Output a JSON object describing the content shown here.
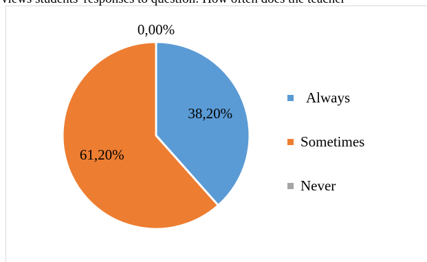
{
  "header": {
    "caption": "views students' responses to question: How often does the teacher"
  },
  "chart_data": {
    "type": "pie",
    "categories": [
      "Always",
      "Sometimes",
      "Never"
    ],
    "values": [
      38.2,
      61.2,
      0.0
    ],
    "value_labels": [
      "38,20%",
      "61,20%",
      "0,00%"
    ],
    "colors": [
      "#5b9bd5",
      "#ed7d31",
      "#a5a5a5"
    ],
    "legend_position": "right",
    "title": ""
  }
}
